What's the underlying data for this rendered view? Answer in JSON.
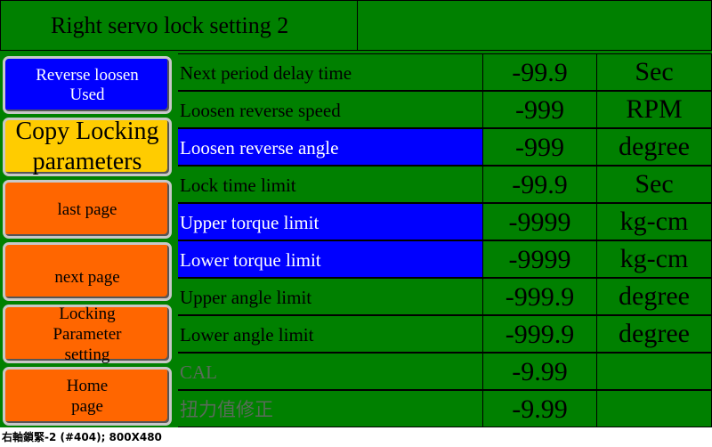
{
  "header": {
    "title": "Right servo lock setting 2",
    "right_panel": ""
  },
  "buttons": {
    "reverse_loosen": [
      "Reverse loosen",
      "Used"
    ],
    "copy_locking": [
      "Copy Locking",
      "parameters"
    ],
    "last_page": [
      "last page"
    ],
    "next_page": [
      "next page"
    ],
    "locking_parameter": [
      "Locking",
      "Parameter",
      "setting"
    ],
    "home_page": [
      "Home",
      "page"
    ]
  },
  "rows": [
    {
      "label": "Next period delay time",
      "value": "-99.9",
      "unit": "Sec"
    },
    {
      "label": "Loosen reverse speed",
      "value": "-999",
      "unit": "RPM"
    },
    {
      "label": "Loosen reverse angle",
      "value": "-999",
      "unit": "degree"
    },
    {
      "label": "Lock time limit",
      "value": "-99.9",
      "unit": "Sec"
    },
    {
      "label": "Upper torque limit",
      "value": "-9999",
      "unit": "kg-cm"
    },
    {
      "label": "Lower torque limit",
      "value": "-9999",
      "unit": "kg-cm"
    },
    {
      "label": "Upper angle limit",
      "value": "-999.9",
      "unit": "degree"
    },
    {
      "label": "Lower angle limit",
      "value": "-999.9",
      "unit": "degree"
    },
    {
      "label": "CAL",
      "value": "-9.99",
      "unit": ""
    },
    {
      "label": "扭力值修正",
      "value": "-9.99",
      "unit": ""
    }
  ],
  "footer": "右軸鎖緊-2 (#404); 800X480",
  "colors": {
    "background": "#008000",
    "highlight": "#0000ff",
    "button_orange": "#ff6600",
    "button_yellow": "#ffcc00",
    "button_blue": "#0000ff"
  }
}
